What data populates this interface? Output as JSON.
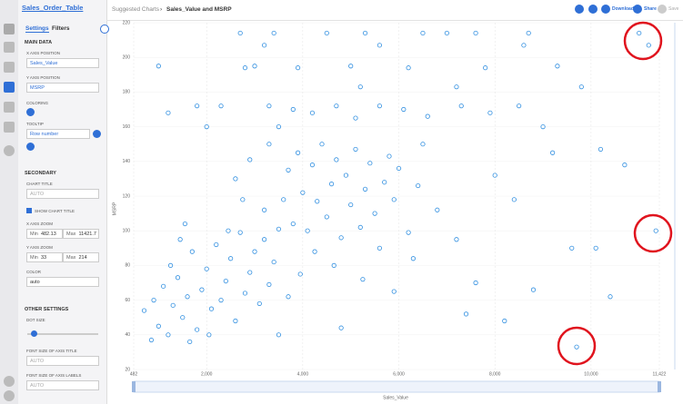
{
  "app": {
    "table_name": "Sales_Order_Table"
  },
  "header": {
    "breadcrumb": "Suggested Charts",
    "separator": "›",
    "chart_name": "Sales_Value and MSRP",
    "download": "Download",
    "share": "Share",
    "save": "Save"
  },
  "sidebar": {
    "tabs": [
      "Settings",
      "Filters"
    ],
    "main_data": "MAIN DATA",
    "x_axis_position": "X AXIS POSITION",
    "x_field": "Sales_Value",
    "y_axis_position": "Y AXIS POSITION",
    "y_field": "MSRP",
    "coloring": "COLORING",
    "tooltip": "TOOLTIP",
    "tooltip_field": "Row number",
    "secondary": "SECONDARY",
    "chart_title": "CHART TITLE",
    "chart_title_placeholder": "AUTO",
    "show_chart_title": "SHOW CHART TITLE",
    "x_axis_zoom": "X AXIS ZOOM",
    "x_zoom": {
      "min_label": "Min",
      "min": 482.13,
      "max_label": "Max",
      "max": 11421.7
    },
    "y_axis_zoom": "Y AXIS ZOOM",
    "y_zoom": {
      "min_label": "Min",
      "min": 33,
      "max_label": "Max",
      "max": 214
    },
    "color": "COLOR",
    "color_value": "auto",
    "other_settings": "OTHER SETTINGS",
    "dot_size": "DOT SIZE",
    "axis_title_font": "FONT SIZE OF AXIS TITLE",
    "axis_title_font_value": "AUTO",
    "axis_labels_font": "FONT SIZE OF AXIS LABELS",
    "axis_labels_font_value": "AUTO"
  },
  "chart_data": {
    "type": "scatter",
    "x_label": "Sales_Value",
    "y_label": "MSRP",
    "color": "#2f8ee0",
    "grid": true,
    "xlim": [
      482.13,
      11421.7
    ],
    "ylim": [
      20,
      220
    ],
    "xticks": [
      {
        "value": 482.13,
        "label": "482"
      },
      {
        "value": 2000,
        "label": "2,000"
      },
      {
        "value": 4000,
        "label": "4,000"
      },
      {
        "value": 6000,
        "label": "6,000"
      },
      {
        "value": 8000,
        "label": "8,000"
      },
      {
        "value": 10000,
        "label": "10,000"
      },
      {
        "value": 11421.7,
        "label": "11,422"
      }
    ],
    "yticks": [
      20,
      40,
      60,
      80,
      100,
      120,
      140,
      160,
      180,
      200,
      220
    ],
    "x": [
      700,
      850,
      900,
      1000,
      1100,
      1200,
      1300,
      1400,
      1500,
      1600,
      1700,
      1800,
      1900,
      2000,
      2100,
      2200,
      2300,
      2400,
      2500,
      2600,
      2700,
      2800,
      2900,
      3000,
      3100,
      3200,
      3300,
      3400,
      3500,
      1250,
      1450,
      1650,
      2050,
      2450,
      2750,
      1550,
      3600,
      3700,
      3800,
      3900,
      4000,
      4100,
      4200,
      4300,
      4400,
      4500,
      4600,
      4700,
      4800,
      4900,
      5000,
      5100,
      5200,
      5300,
      5400,
      5500,
      5600,
      5700,
      5800,
      5900,
      6000,
      6200,
      6400,
      2600,
      2900,
      3200,
      3300,
      4250,
      4650,
      5250,
      5900,
      3700,
      3950,
      6300,
      6800,
      7200,
      7600,
      8000,
      8400,
      8800,
      9200,
      9600,
      10400,
      10200,
      7400,
      8200,
      4800,
      3500,
      6500,
      2300,
      3000,
      3300,
      3800,
      4200,
      4700,
      5100,
      5600,
      6100,
      6600,
      7300,
      7900,
      8500,
      9000,
      2800,
      3200,
      3900,
      4500,
      5000,
      5600,
      6200,
      7000,
      7800,
      8600,
      9300,
      2700,
      3400,
      5300,
      6500,
      7600,
      8700,
      1200,
      1800,
      1000,
      2000,
      5200,
      7200,
      3500,
      9800,
      11000,
      11200,
      11350,
      9700,
      10100,
      10700
    ],
    "values": [
      54,
      37,
      60,
      45,
      68,
      40,
      57,
      73,
      50,
      62,
      88,
      43,
      66,
      78,
      55,
      92,
      60,
      71,
      84,
      48,
      99,
      64,
      76,
      88,
      58,
      95,
      69,
      82,
      101,
      80,
      95,
      36,
      40,
      100,
      118,
      104,
      118,
      135,
      104,
      145,
      122,
      100,
      138,
      117,
      150,
      108,
      127,
      141,
      96,
      132,
      115,
      147,
      102,
      124,
      139,
      110,
      90,
      128,
      143,
      118,
      136,
      99,
      126,
      130,
      141,
      112,
      150,
      88,
      80,
      72,
      65,
      62,
      75,
      84,
      112,
      95,
      70,
      132,
      118,
      66,
      145,
      90,
      62,
      147,
      52,
      48,
      44,
      40,
      150,
      172,
      195,
      172,
      170,
      168,
      172,
      165,
      172,
      170,
      166,
      172,
      168,
      172,
      160,
      194,
      207,
      194,
      214,
      195,
      207,
      194,
      214,
      194,
      207,
      195,
      214,
      214,
      214,
      214,
      214,
      214,
      168,
      172,
      195,
      160,
      183,
      183,
      160,
      183,
      214,
      207,
      100,
      33,
      90,
      138
    ]
  }
}
